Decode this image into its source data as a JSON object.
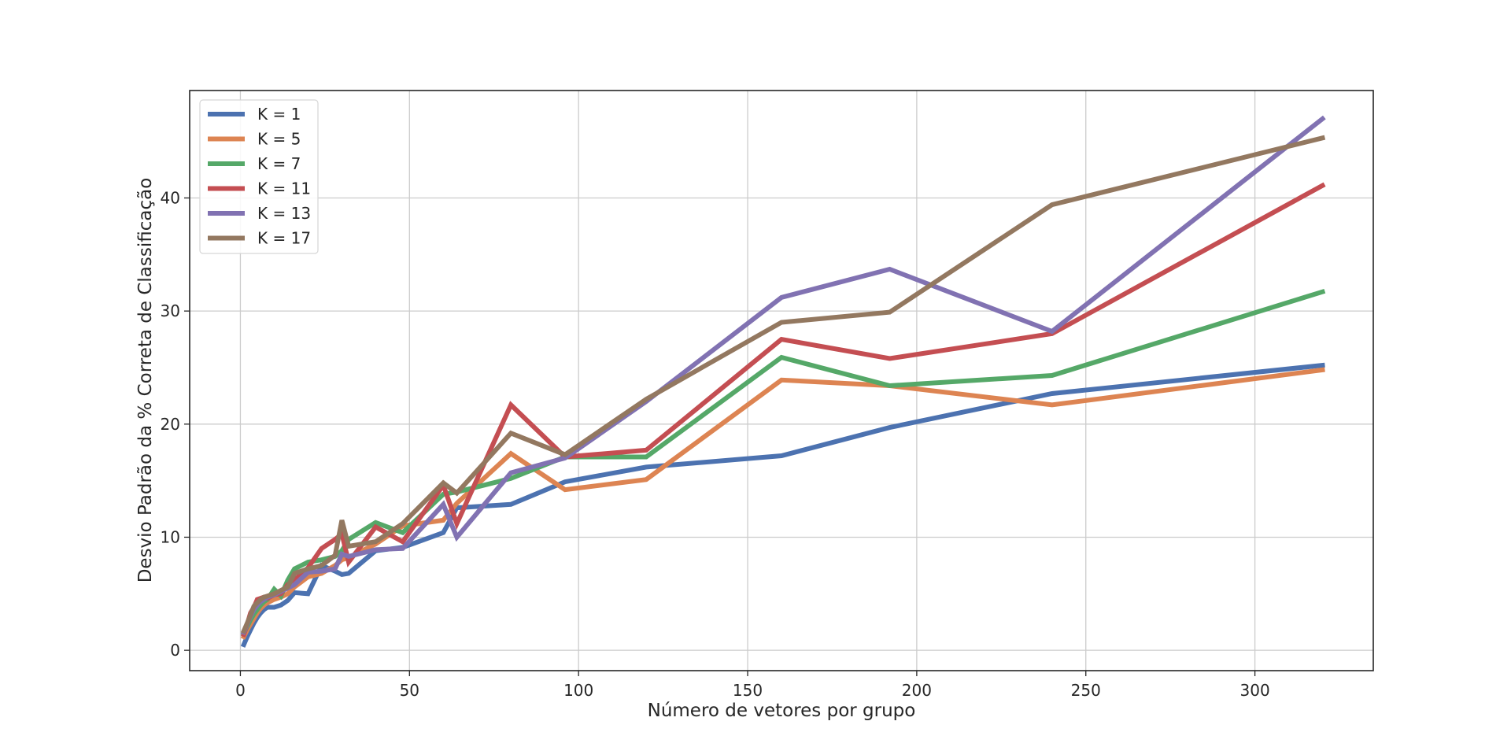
{
  "chart_data": {
    "type": "line",
    "title": "",
    "xlabel": "Número de vetores por grupo",
    "ylabel": "Desvio Padrão da % Correta de Classificação",
    "xlim": [
      -15,
      335
    ],
    "ylim": [
      -1.8,
      49.5
    ],
    "x_ticks": [
      0,
      50,
      100,
      150,
      200,
      250,
      300
    ],
    "y_ticks": [
      0,
      10,
      20,
      30,
      40
    ],
    "grid": true,
    "legend_position": "top-left",
    "x": [
      1,
      2,
      3,
      4,
      5,
      6,
      7,
      8,
      10,
      12,
      14,
      16,
      20,
      24,
      28,
      30,
      32,
      40,
      48,
      60,
      64,
      80,
      96,
      120,
      160,
      192,
      240,
      320
    ],
    "series": [
      {
        "name": "K = 1",
        "color": "#4c72b0",
        "values": [
          0.5,
          1.2,
          1.8,
          2.4,
          2.9,
          3.3,
          3.6,
          3.8,
          3.8,
          4.0,
          4.4,
          5.1,
          5.0,
          7.5,
          7.0,
          6.7,
          6.8,
          8.8,
          9.1,
          10.4,
          12.6,
          12.9,
          14.9,
          16.2,
          17.2,
          19.7,
          22.7,
          25.2
        ]
      },
      {
        "name": "K = 5",
        "color": "#dd8452",
        "values": [
          1.2,
          1.8,
          2.3,
          2.8,
          3.3,
          3.7,
          4.0,
          4.2,
          4.5,
          4.7,
          5.0,
          5.6,
          6.5,
          6.8,
          7.5,
          8.0,
          8.2,
          9.4,
          11.0,
          11.5,
          13.0,
          17.4,
          14.2,
          15.1,
          23.9,
          23.4,
          21.7,
          24.8
        ]
      },
      {
        "name": "K = 7",
        "color": "#55a868",
        "values": [
          1.5,
          2.1,
          2.7,
          3.2,
          3.6,
          4.0,
          4.3,
          4.5,
          5.4,
          4.8,
          6.2,
          7.2,
          7.8,
          8.0,
          8.3,
          8.8,
          9.8,
          11.3,
          10.4,
          13.8,
          14.0,
          15.2,
          17.1,
          17.1,
          25.9,
          23.4,
          24.3,
          31.7
        ]
      },
      {
        "name": "K = 11",
        "color": "#c44e52",
        "values": [
          1.4,
          2.3,
          3.3,
          3.8,
          4.5,
          4.6,
          4.7,
          4.6,
          4.9,
          5.0,
          5.8,
          6.2,
          7.3,
          9.0,
          9.8,
          10.3,
          7.8,
          10.9,
          9.6,
          14.6,
          11.2,
          21.7,
          17.1,
          17.7,
          27.5,
          25.8,
          28.0,
          41.1
        ]
      },
      {
        "name": "K = 13",
        "color": "#8172b2",
        "values": [
          1.6,
          2.3,
          3.0,
          3.6,
          4.0,
          4.3,
          4.5,
          4.7,
          4.9,
          5.2,
          5.5,
          5.8,
          6.9,
          7.0,
          7.2,
          8.5,
          8.3,
          8.9,
          9.0,
          12.9,
          10.0,
          15.7,
          17.0,
          22.0,
          31.2,
          33.7,
          28.2,
          47.0
        ]
      },
      {
        "name": "K = 17",
        "color": "#937860",
        "values": [
          1.7,
          2.4,
          3.1,
          3.9,
          4.2,
          4.5,
          4.7,
          4.8,
          5.0,
          5.3,
          5.6,
          6.8,
          7.2,
          7.5,
          8.4,
          11.5,
          9.2,
          9.6,
          11.2,
          14.8,
          13.9,
          19.2,
          17.3,
          22.2,
          29.0,
          29.9,
          39.4,
          45.3
        ]
      }
    ]
  }
}
